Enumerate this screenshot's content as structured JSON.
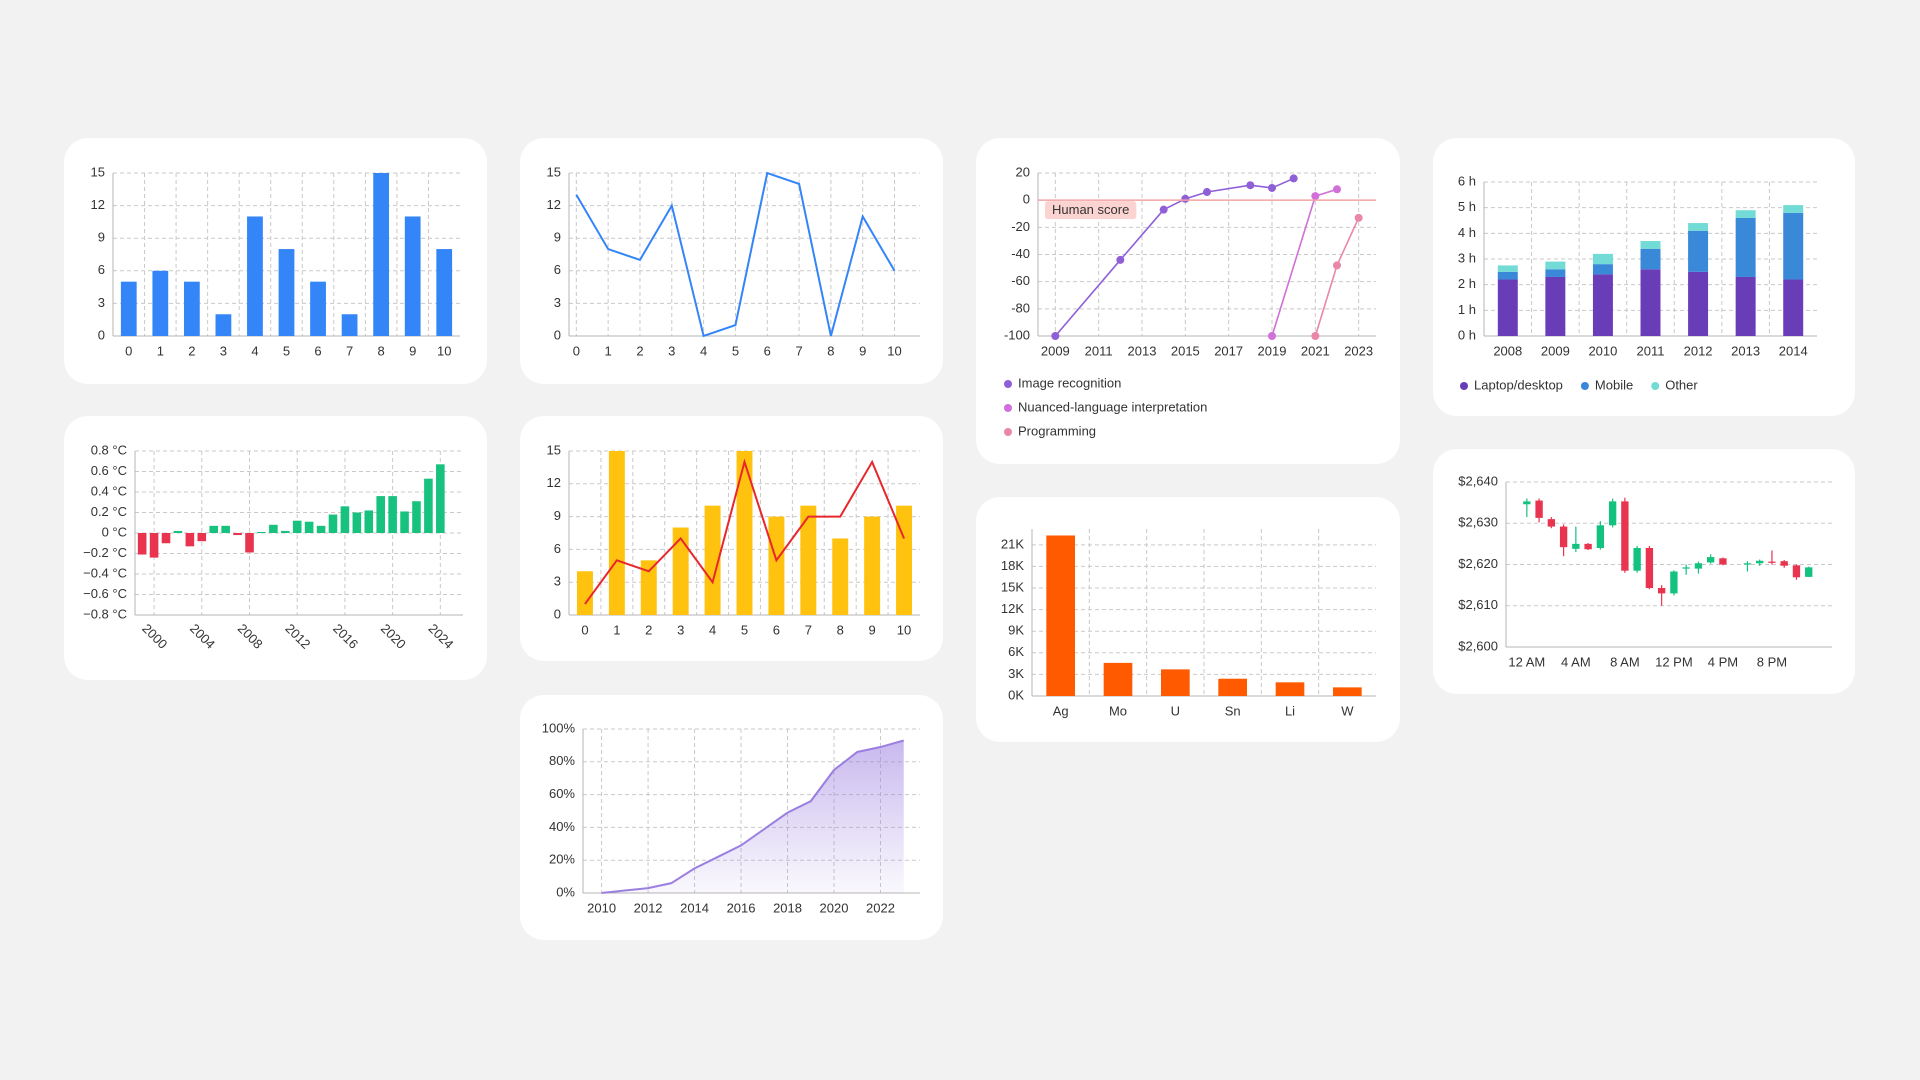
{
  "chart_data": [
    {
      "type": "bar",
      "categories": [
        "0",
        "1",
        "2",
        "3",
        "4",
        "5",
        "6",
        "7",
        "8",
        "9",
        "10"
      ],
      "values": [
        5,
        6,
        5,
        2,
        11,
        8,
        5,
        2,
        15,
        11,
        8
      ],
      "color": "#3385f8",
      "ylim": [
        0,
        15
      ],
      "yticks": [
        0,
        3,
        6,
        9,
        12,
        15
      ],
      "grid": true
    },
    {
      "type": "line",
      "x": [
        0,
        1,
        2,
        3,
        4,
        5,
        6,
        7,
        8,
        9,
        10
      ],
      "values": [
        13,
        8,
        7,
        12,
        0,
        1,
        15,
        14,
        0,
        11,
        6
      ],
      "color": "#3385f8",
      "xlim": [
        -0.23,
        10.8
      ],
      "xticks": [
        0,
        1,
        2,
        3,
        4,
        5,
        6,
        7,
        8,
        9,
        10
      ],
      "ylim": [
        0,
        15
      ],
      "yticks": [
        0,
        3,
        6,
        9,
        12,
        15
      ],
      "grid": true
    },
    {
      "type": "line",
      "markers": true,
      "series": [
        {
          "name": "Image recognition",
          "color": "#8f5fd8",
          "x": [
            2009,
            2012,
            2014,
            2015,
            2016,
            2018,
            2019,
            2020
          ],
          "values": [
            -100,
            -44,
            -7,
            1,
            6,
            11,
            9,
            16
          ]
        },
        {
          "name": "Nuanced-language interpretation",
          "color": "#d070d8",
          "x": [
            2019,
            2021,
            2022
          ],
          "values": [
            -100,
            3,
            8
          ]
        },
        {
          "name": "Programming",
          "color": "#e887a8",
          "x": [
            2021,
            2022,
            2023
          ],
          "values": [
            -100,
            -48,
            -13
          ]
        }
      ],
      "xlim": [
        2008.2,
        2023.8
      ],
      "xticks": [
        2009,
        2011,
        2013,
        2015,
        2017,
        2019,
        2021,
        2023
      ],
      "ylim": [
        -100,
        20
      ],
      "yticks": [
        -100,
        -80,
        -60,
        -40,
        -20,
        0,
        20
      ],
      "reference_line": {
        "value": 0,
        "label": "Human score",
        "color": "#f4a3a3"
      },
      "legend": "bottom-left",
      "grid": true
    },
    {
      "type": "stacked_bar",
      "categories": [
        "2008",
        "2009",
        "2010",
        "2011",
        "2012",
        "2013",
        "2014"
      ],
      "series": [
        {
          "name": "Laptop/desktop",
          "color": "#6a3db8",
          "values": [
            2.2,
            2.3,
            2.4,
            2.6,
            2.5,
            2.3,
            2.2
          ]
        },
        {
          "name": "Mobile",
          "color": "#3a88d8",
          "values": [
            0.3,
            0.3,
            0.4,
            0.8,
            1.6,
            2.3,
            2.6
          ]
        },
        {
          "name": "Other",
          "color": "#72dbd5",
          "values": [
            0.25,
            0.3,
            0.4,
            0.3,
            0.3,
            0.3,
            0.3
          ]
        }
      ],
      "ylim": [
        0,
        6
      ],
      "yticks": [
        {
          "value": 0,
          "label": "0 h"
        },
        {
          "value": 1,
          "label": "1 h"
        },
        {
          "value": 2,
          "label": "2 h"
        },
        {
          "value": 3,
          "label": "3 h"
        },
        {
          "value": 4,
          "label": "4 h"
        },
        {
          "value": 5,
          "label": "5 h"
        },
        {
          "value": 6,
          "label": "6 h"
        }
      ],
      "legend": "bottom-left",
      "grid": true
    },
    {
      "type": "bar",
      "x": [
        1999,
        2000,
        2001,
        2002,
        2003,
        2004,
        2005,
        2006,
        2007,
        2008,
        2009,
        2010,
        2011,
        2012,
        2013,
        2014,
        2015,
        2016,
        2017,
        2018,
        2019,
        2020,
        2021,
        2022,
        2023,
        2024
      ],
      "values": [
        -0.21,
        -0.24,
        -0.1,
        0.02,
        -0.13,
        -0.08,
        0.07,
        0.07,
        -0.02,
        -0.19,
        0.01,
        0.08,
        0.02,
        0.12,
        0.11,
        0.07,
        0.18,
        0.26,
        0.2,
        0.22,
        0.36,
        0.36,
        0.21,
        0.31,
        0.53,
        0.67
      ],
      "colors": {
        "positive": "#17c27e",
        "negative": "#e8344e"
      },
      "xlim": [
        1998.4,
        2025.9
      ],
      "xticks": [
        2000,
        2004,
        2008,
        2012,
        2016,
        2020,
        2024
      ],
      "ylim": [
        -0.8,
        0.8
      ],
      "yticks": [
        {
          "value": -0.8,
          "label": "−0.8 °C"
        },
        {
          "value": -0.6,
          "label": "−0.6 °C"
        },
        {
          "value": -0.4,
          "label": "−0.4 °C"
        },
        {
          "value": -0.2,
          "label": "−0.2 °C"
        },
        {
          "value": 0,
          "label": "0 °C"
        },
        {
          "value": 0.2,
          "label": "0.2 °C"
        },
        {
          "value": 0.4,
          "label": "0.4 °C"
        },
        {
          "value": 0.6,
          "label": "0.6 °C"
        },
        {
          "value": 0.8,
          "label": "0.8 °C"
        }
      ],
      "grid": true
    },
    {
      "type": "combo",
      "categories": [
        "0",
        "1",
        "2",
        "3",
        "4",
        "5",
        "6",
        "7",
        "8",
        "9",
        "10"
      ],
      "series": [
        {
          "type": "bar",
          "color": "#ffc20e",
          "values": [
            4,
            15,
            5,
            8,
            10,
            15,
            9,
            10,
            7,
            9,
            10
          ]
        },
        {
          "type": "line",
          "color": "#e8262b",
          "values": [
            1,
            5,
            4,
            7,
            3,
            14,
            5,
            9,
            9,
            14,
            7
          ]
        }
      ],
      "ylim": [
        0,
        15
      ],
      "yticks": [
        0,
        3,
        6,
        9,
        12,
        15
      ],
      "grid": true
    },
    {
      "type": "bar",
      "categories": [
        "Ag",
        "Mo",
        "U",
        "Sn",
        "Li",
        "W"
      ],
      "values": [
        22300,
        4600,
        3700,
        2400,
        1900,
        1200
      ],
      "color": "#ff5a00",
      "ylim": [
        0,
        23200
      ],
      "yticks": [
        {
          "value": 0,
          "label": "0K"
        },
        {
          "value": 3000,
          "label": "3K"
        },
        {
          "value": 6000,
          "label": "6K"
        },
        {
          "value": 9000,
          "label": "9K"
        },
        {
          "value": 12000,
          "label": "12K"
        },
        {
          "value": 15000,
          "label": "15K"
        },
        {
          "value": 18000,
          "label": "18K"
        },
        {
          "value": 21000,
          "label": "21K"
        }
      ],
      "grid": true
    },
    {
      "type": "candlestick",
      "x": [
        0,
        1,
        2,
        3,
        4,
        5,
        6,
        7,
        8,
        9,
        10,
        11,
        12,
        13,
        14,
        15,
        16,
        18,
        19,
        20,
        21,
        22,
        23
      ],
      "open": [
        2634.6,
        2635.5,
        2631,
        2629.2,
        2623.8,
        2625,
        2624,
        2629.5,
        2635.3,
        2618.5,
        2624,
        2614.3,
        2613,
        2619,
        2619,
        2620.5,
        2621.5,
        2620,
        2620.3,
        2620.7,
        2620.8,
        2619.8,
        2617
      ],
      "high": [
        2636,
        2636,
        2631.5,
        2629.7,
        2629.2,
        2625.2,
        2630.5,
        2636,
        2636.2,
        2624.5,
        2624.5,
        2615,
        2618.6,
        2620,
        2620.7,
        2622.5,
        2621.7,
        2620.8,
        2621.2,
        2623.4,
        2621.1,
        2620,
        2619.5
      ],
      "low": [
        2631.5,
        2630.2,
        2628.8,
        2622,
        2623,
        2623.5,
        2623.6,
        2629,
        2618,
        2618,
        2614,
        2610,
        2612.5,
        2617.5,
        2617.8,
        2620.2,
        2619.8,
        2618.3,
        2619.7,
        2620,
        2619.2,
        2616.3,
        2617
      ],
      "close": [
        2635.3,
        2631.3,
        2629.2,
        2624.2,
        2625,
        2623.7,
        2629.5,
        2635.3,
        2618.5,
        2624,
        2614.3,
        2613,
        2618.3,
        2619.3,
        2620.3,
        2621.8,
        2620,
        2620.3,
        2620.9,
        2620.4,
        2619.7,
        2616.9,
        2619.3
      ],
      "colors": {
        "up": "#14c27f",
        "down": "#e8344e"
      },
      "xlim": [
        -1.7,
        24.9
      ],
      "xticks": [
        {
          "value": 0,
          "label": "12 AM"
        },
        {
          "value": 4,
          "label": "4 AM"
        },
        {
          "value": 8,
          "label": "8 AM"
        },
        {
          "value": 12,
          "label": "12 PM"
        },
        {
          "value": 16,
          "label": "4 PM"
        },
        {
          "value": 20,
          "label": "8 PM"
        }
      ],
      "ylim": [
        2600,
        2640
      ],
      "yticks": [
        {
          "value": 2600,
          "label": "$2,600"
        },
        {
          "value": 2610,
          "label": "$2,610"
        },
        {
          "value": 2620,
          "label": "$2,620"
        },
        {
          "value": 2630,
          "label": "$2,630"
        },
        {
          "value": 2640,
          "label": "$2,640"
        }
      ],
      "grid": "y"
    },
    {
      "type": "area",
      "x": [
        2010,
        2011,
        2012,
        2013,
        2014,
        2015,
        2016,
        2017,
        2018,
        2019,
        2020,
        2021,
        2022,
        2023
      ],
      "values": [
        0,
        1.5,
        3,
        6,
        15,
        22,
        29,
        39,
        49,
        56,
        75,
        86,
        89,
        93
      ],
      "color": "#9b7fe0",
      "xlim": [
        2009.2,
        2023.7
      ],
      "xticks": [
        2010,
        2012,
        2014,
        2016,
        2018,
        2020,
        2022
      ],
      "ylim": [
        0,
        100
      ],
      "yticks": [
        {
          "value": 0,
          "label": "0%"
        },
        {
          "value": 20,
          "label": "20%"
        },
        {
          "value": 40,
          "label": "40%"
        },
        {
          "value": 60,
          "label": "60%"
        },
        {
          "value": 80,
          "label": "80%"
        },
        {
          "value": 100,
          "label": "100%"
        }
      ],
      "grid": true
    }
  ]
}
